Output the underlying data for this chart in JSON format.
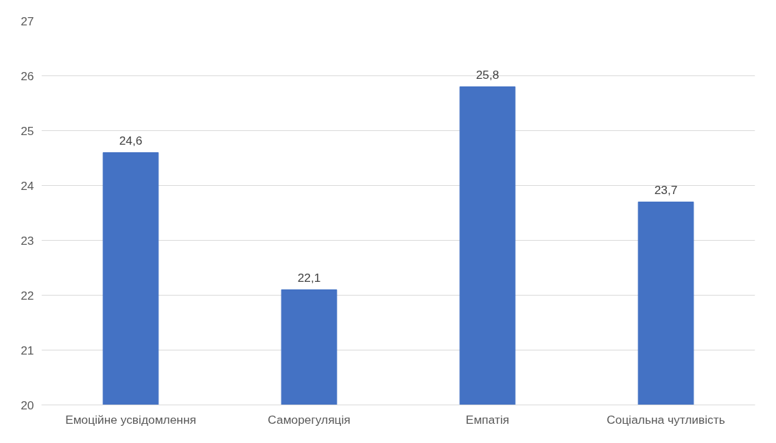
{
  "chart_data": {
    "type": "bar",
    "categories": [
      "Емоційне усвідомлення",
      "Саморегуляція",
      "Емпатія",
      "Соціальна чутливість"
    ],
    "values": [
      24.6,
      22.1,
      25.8,
      23.7
    ],
    "value_labels": [
      "24,6",
      "22,1",
      "25,8",
      "23,7"
    ],
    "color": "#4472c4",
    "ylim": [
      20,
      27
    ],
    "yticks": [
      20,
      21,
      22,
      23,
      24,
      25,
      26,
      27
    ],
    "grid": "y"
  }
}
